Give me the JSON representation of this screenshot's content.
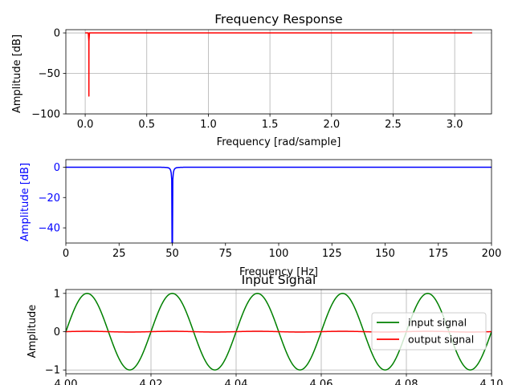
{
  "chart_data": [
    {
      "type": "line",
      "title": "Frequency Response",
      "xlabel": "Frequency [rad/sample]",
      "ylabel": "Amplitude [dB]",
      "xlim": [
        -0.157,
        3.299
      ],
      "ylim": [
        -100,
        4
      ],
      "xticks": [
        "0.0",
        "0.5",
        "1.0",
        "1.5",
        "2.0",
        "2.5",
        "3.0"
      ],
      "xtick_values": [
        0,
        0.5,
        1.0,
        1.5,
        2.0,
        2.5,
        3.0
      ],
      "yticks": [
        "0",
        "−50",
        "−100"
      ],
      "ytick_values": [
        0,
        -50,
        -100
      ],
      "grid": true,
      "color": "#ff0000",
      "series": [
        {
          "x": [
            0.0,
            0.025,
            0.0295,
            0.03,
            0.0305,
            0.035,
            3.1416
          ],
          "y": [
            0,
            0,
            -10,
            -78,
            -10,
            0,
            0
          ]
        }
      ]
    },
    {
      "type": "line",
      "title": "",
      "xlabel": "Frequency [Hz]",
      "ylabel": "Amplitude [dB]",
      "ylabel_color": "#0000ff",
      "xlim": [
        0,
        200
      ],
      "ylim": [
        -50,
        5
      ],
      "xticks": [
        "0",
        "25",
        "50",
        "75",
        "100",
        "125",
        "150",
        "175",
        "200"
      ],
      "xtick_values": [
        0,
        25,
        50,
        75,
        100,
        125,
        150,
        175,
        200
      ],
      "yticks": [
        "0",
        "−20",
        "−40"
      ],
      "ytick_values": [
        0,
        -20,
        -40
      ],
      "grid": false,
      "color": "#0000ff",
      "notch_hz": 50
    },
    {
      "type": "line",
      "title": "Input Signal",
      "xlabel": "",
      "ylabel": "Amplitude",
      "xlim": [
        4.0,
        4.1
      ],
      "ylim": [
        -1.1,
        1.1
      ],
      "xticks": [
        "4.00",
        "4.02",
        "4.04",
        "4.06",
        "4.08",
        "4.10"
      ],
      "xtick_values": [
        4.0,
        4.02,
        4.04,
        4.06,
        4.08,
        4.1
      ],
      "yticks": [
        "1",
        "0",
        "−1"
      ],
      "ytick_values": [
        1,
        0,
        -1
      ],
      "grid": true,
      "legend_position": "center-right",
      "series": [
        {
          "name": "input signal",
          "color": "#008000",
          "frequency_hz": 50,
          "amplitude": 1
        },
        {
          "name": "output signal",
          "color": "#ff0000",
          "frequency_hz": 50,
          "amplitude": 0.01
        }
      ]
    }
  ]
}
